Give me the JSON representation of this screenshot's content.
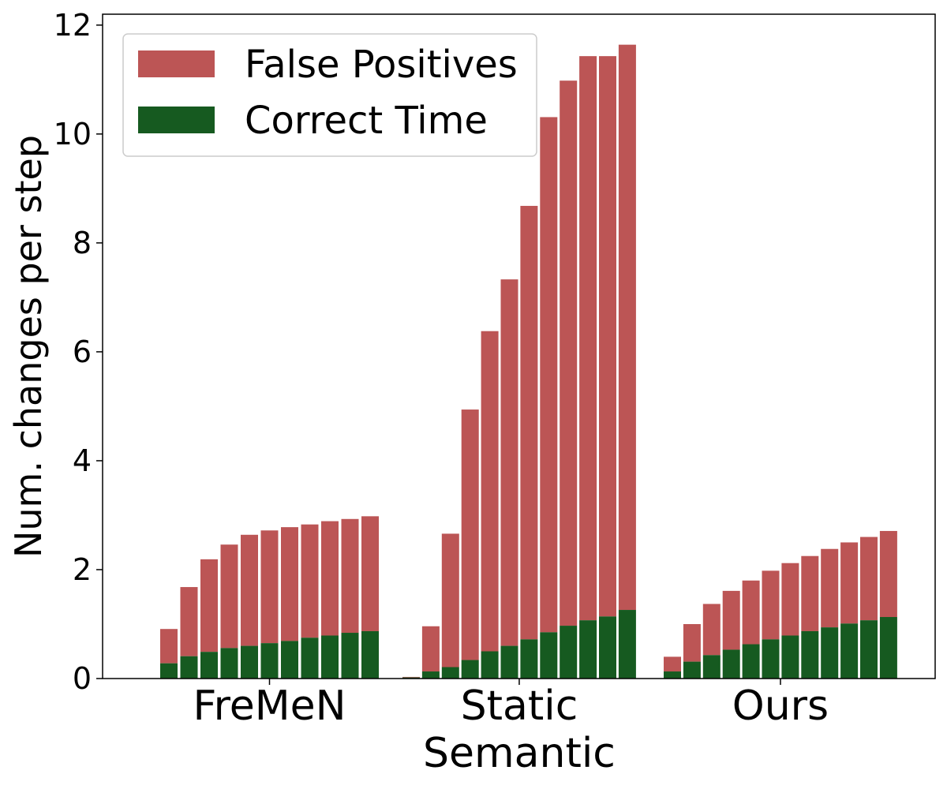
{
  "chart_data": {
    "type": "bar",
    "stacked": true,
    "title": "",
    "xlabel": "",
    "ylabel": "Num. changes per step",
    "ylim": [
      0,
      12.2
    ],
    "yticks": [
      0,
      2,
      4,
      6,
      8,
      10,
      12
    ],
    "grid": false,
    "legend": "top-left",
    "colors": {
      "false_positives": "#bc5555",
      "correct_time": "#165a20"
    },
    "groups": [
      {
        "label": "FreMeN",
        "correct_time": [
          0.28,
          0.41,
          0.49,
          0.56,
          0.6,
          0.65,
          0.69,
          0.75,
          0.79,
          0.84,
          0.87
        ],
        "false_positives": [
          0.63,
          1.27,
          1.7,
          1.9,
          2.04,
          2.07,
          2.09,
          2.08,
          2.1,
          2.09,
          2.11
        ]
      },
      {
        "label": "Static\nSemantic",
        "correct_time": [
          0.02,
          0.13,
          0.21,
          0.34,
          0.5,
          0.6,
          0.72,
          0.85,
          0.97,
          1.07,
          1.14,
          1.26
        ],
        "false_positives": [
          0.01,
          0.83,
          2.45,
          4.6,
          5.88,
          6.73,
          7.96,
          9.46,
          10.01,
          10.36,
          10.29,
          10.38
        ]
      },
      {
        "label": "Ours",
        "correct_time": [
          0.13,
          0.31,
          0.43,
          0.53,
          0.63,
          0.72,
          0.79,
          0.87,
          0.94,
          1.01,
          1.07,
          1.13
        ],
        "false_positives": [
          0.27,
          0.69,
          0.94,
          1.08,
          1.17,
          1.26,
          1.33,
          1.38,
          1.44,
          1.49,
          1.53,
          1.58
        ]
      }
    ],
    "series": [
      {
        "name": "False Positives"
      },
      {
        "name": "Correct Time"
      }
    ]
  }
}
